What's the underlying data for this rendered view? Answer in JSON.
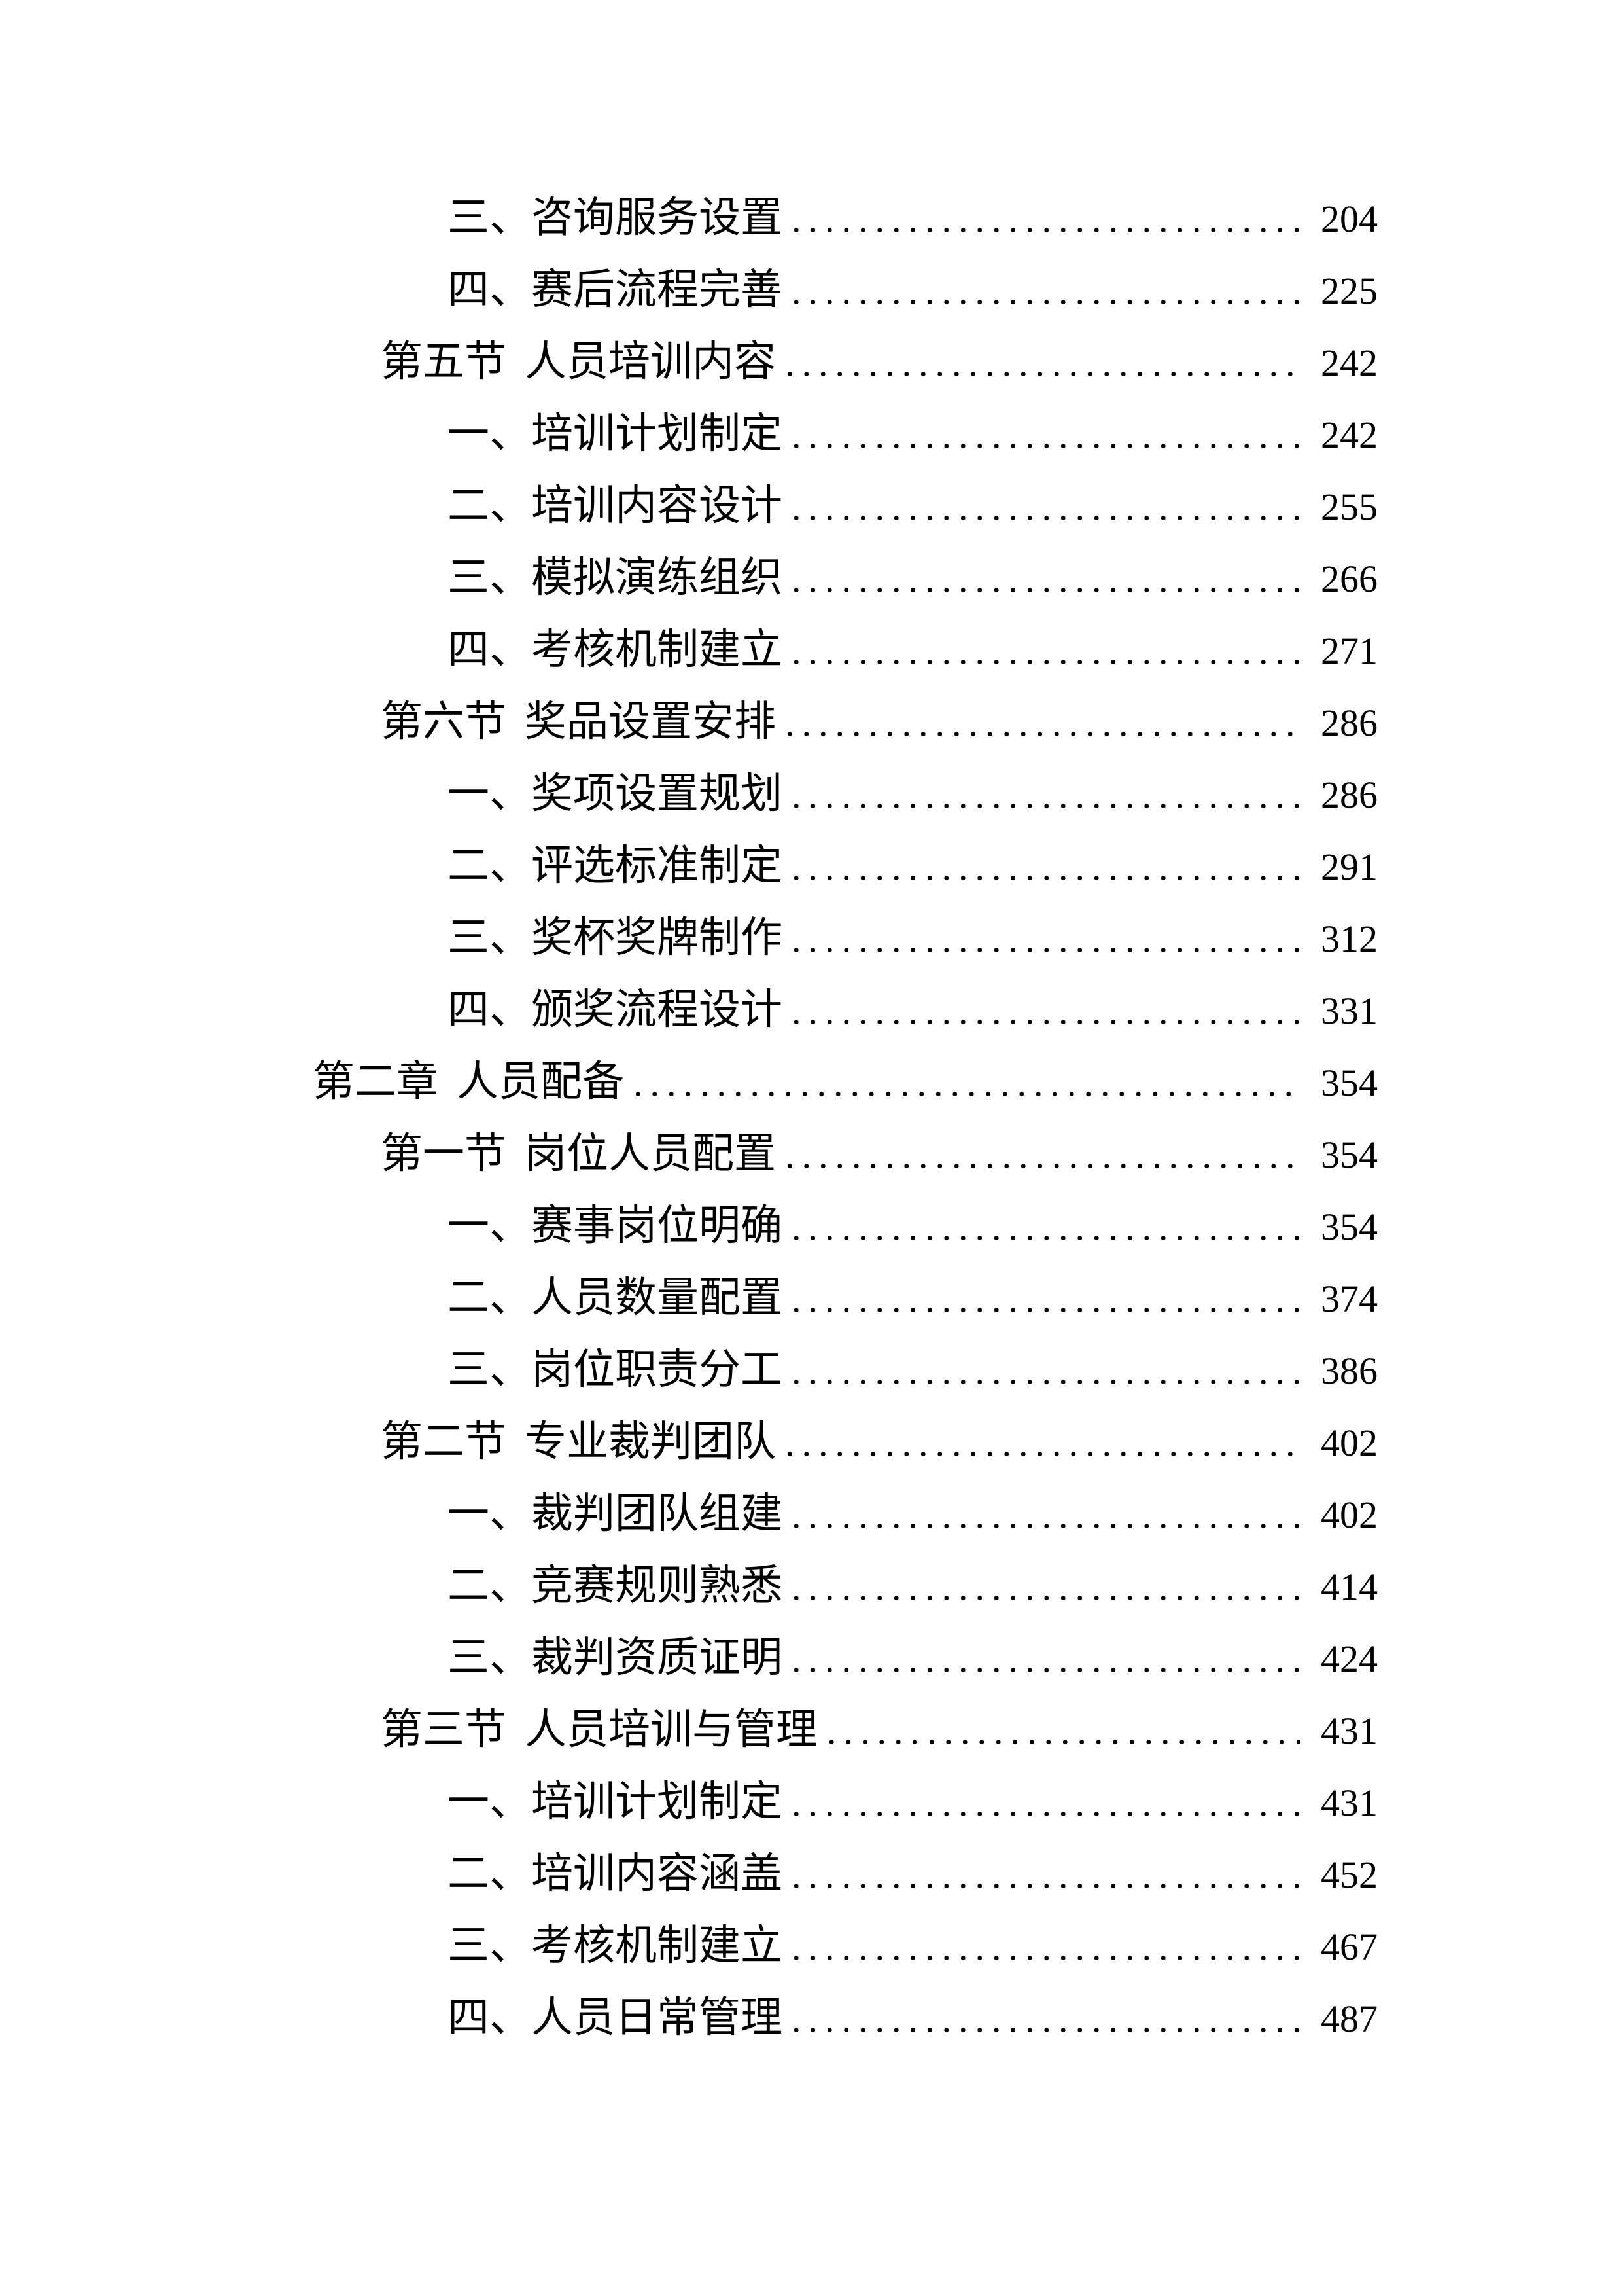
{
  "document": {
    "type": "table-of-contents",
    "toc_entries": [
      {
        "level": "item",
        "num": "三、",
        "title": "咨询服务设置",
        "page": "204"
      },
      {
        "level": "item",
        "num": "四、",
        "title": "赛后流程完善",
        "page": "225"
      },
      {
        "level": "section",
        "num": "第五节",
        "title": "人员培训内容",
        "page": "242"
      },
      {
        "level": "item",
        "num": "一、",
        "title": "培训计划制定",
        "page": "242"
      },
      {
        "level": "item",
        "num": "二、",
        "title": "培训内容设计",
        "page": "255"
      },
      {
        "level": "item",
        "num": "三、",
        "title": "模拟演练组织",
        "page": "266"
      },
      {
        "level": "item",
        "num": "四、",
        "title": "考核机制建立",
        "page": "271"
      },
      {
        "level": "section",
        "num": "第六节",
        "title": "奖品设置安排",
        "page": "286"
      },
      {
        "level": "item",
        "num": "一、",
        "title": "奖项设置规划",
        "page": "286"
      },
      {
        "level": "item",
        "num": "二、",
        "title": "评选标准制定",
        "page": "291"
      },
      {
        "level": "item",
        "num": "三、",
        "title": "奖杯奖牌制作",
        "page": "312"
      },
      {
        "level": "item",
        "num": "四、",
        "title": "颁奖流程设计",
        "page": "331"
      },
      {
        "level": "chapter",
        "num": "第二章",
        "title": "人员配备",
        "page": "354"
      },
      {
        "level": "section",
        "num": "第一节",
        "title": "岗位人员配置",
        "page": "354"
      },
      {
        "level": "item",
        "num": "一、",
        "title": "赛事岗位明确",
        "page": "354"
      },
      {
        "level": "item",
        "num": "二、",
        "title": "人员数量配置",
        "page": "374"
      },
      {
        "level": "item",
        "num": "三、",
        "title": "岗位职责分工",
        "page": "386"
      },
      {
        "level": "section",
        "num": "第二节",
        "title": "专业裁判团队",
        "page": "402"
      },
      {
        "level": "item",
        "num": "一、",
        "title": "裁判团队组建",
        "page": "402"
      },
      {
        "level": "item",
        "num": "二、",
        "title": "竞赛规则熟悉",
        "page": "414"
      },
      {
        "level": "item",
        "num": "三、",
        "title": "裁判资质证明",
        "page": "424"
      },
      {
        "level": "section",
        "num": "第三节",
        "title": "人员培训与管理",
        "page": "431"
      },
      {
        "level": "item",
        "num": "一、",
        "title": "培训计划制定",
        "page": "431"
      },
      {
        "level": "item",
        "num": "二、",
        "title": "培训内容涵盖",
        "page": "452"
      },
      {
        "level": "item",
        "num": "三、",
        "title": "考核机制建立",
        "page": "467"
      },
      {
        "level": "item",
        "num": "四、",
        "title": "人员日常管理",
        "page": "487"
      }
    ]
  }
}
